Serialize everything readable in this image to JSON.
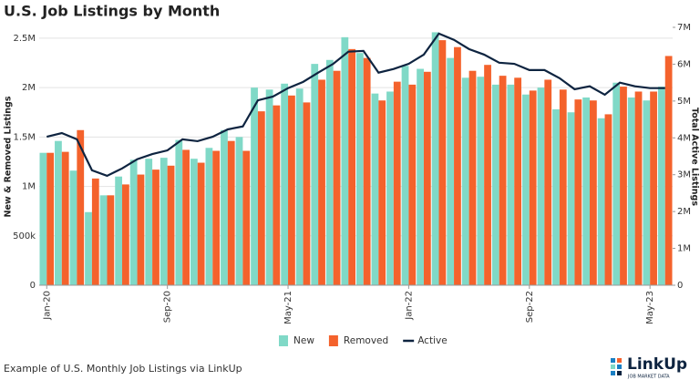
{
  "chart_data": {
    "type": "bar_line",
    "title": "U.S. Job Listings by Month",
    "y_label": "New & Removed Listings",
    "y2_label": "Total Active Listings",
    "categories": [
      "Jan-20",
      null,
      null,
      null,
      null,
      null,
      null,
      null,
      "Sep-20",
      null,
      null,
      null,
      null,
      null,
      null,
      null,
      "May-21",
      null,
      null,
      null,
      null,
      null,
      null,
      null,
      "Jan-22",
      null,
      null,
      null,
      null,
      null,
      null,
      null,
      "Sep-22",
      null,
      null,
      null,
      null,
      null,
      null,
      null,
      "May-23",
      null
    ],
    "series": [
      {
        "name": "New",
        "color": "#80d9c7",
        "values": [
          1340000,
          1460000,
          1160000,
          740000,
          910000,
          1100000,
          1270000,
          1280000,
          1290000,
          1470000,
          1280000,
          1390000,
          1570000,
          1500000,
          2000000,
          1980000,
          2040000,
          1990000,
          2240000,
          2280000,
          2510000,
          2350000,
          1940000,
          1960000,
          2220000,
          2190000,
          2560000,
          2300000,
          2100000,
          2110000,
          2030000,
          2030000,
          1930000,
          2000000,
          1780000,
          1750000,
          1900000,
          1690000,
          2050000,
          1900000,
          1870000,
          2010000
        ]
      },
      {
        "name": "Removed",
        "color": "#f4622c",
        "values": [
          1340000,
          1350000,
          1570000,
          1080000,
          910000,
          1020000,
          1120000,
          1170000,
          1210000,
          1370000,
          1240000,
          1360000,
          1460000,
          1360000,
          1760000,
          1820000,
          1920000,
          1850000,
          2080000,
          2170000,
          2390000,
          2300000,
          1870000,
          2060000,
          2030000,
          2160000,
          2480000,
          2410000,
          2170000,
          2230000,
          2120000,
          2100000,
          1970000,
          2080000,
          1980000,
          1880000,
          1870000,
          1730000,
          2010000,
          1960000,
          1960000,
          2320000
        ]
      },
      {
        "name": "Active",
        "color": "#0e2440",
        "axis": "y2",
        "values": [
          4030000,
          4130000,
          3960000,
          3120000,
          2970000,
          3170000,
          3420000,
          3560000,
          3660000,
          3960000,
          3910000,
          4030000,
          4230000,
          4310000,
          5020000,
          5120000,
          5350000,
          5520000,
          5770000,
          6010000,
          6340000,
          6360000,
          5770000,
          5870000,
          6010000,
          6260000,
          6830000,
          6660000,
          6410000,
          6260000,
          6040000,
          6010000,
          5840000,
          5840000,
          5620000,
          5320000,
          5400000,
          5170000,
          5500000,
          5400000,
          5350000,
          5350000
        ]
      }
    ],
    "ylim": [
      0,
      2610000
    ],
    "yticks": [
      0,
      {
        "value": 500000,
        "label": "500k"
      },
      {
        "value": 1000000,
        "label": "1M"
      },
      {
        "value": 1500000,
        "label": "1.5M"
      },
      {
        "value": 2000000,
        "label": "2M"
      },
      {
        "value": 2500000,
        "label": "2.5M"
      }
    ],
    "y2lim": [
      0,
      7000000
    ],
    "y2ticks": [
      0,
      {
        "value": 1000000,
        "label": "1M"
      },
      {
        "value": 2000000,
        "label": "2M"
      },
      {
        "value": 3000000,
        "label": "3M"
      },
      {
        "value": 4000000,
        "label": "4M"
      },
      {
        "value": 5000000,
        "label": "5M"
      },
      {
        "value": 6000000,
        "label": "6M"
      },
      {
        "value": 7000000,
        "label": "7M"
      }
    ],
    "grid": true,
    "legend": "bottom"
  },
  "footer": {
    "caption": "Example of U.S. Monthly Job Listings via LinkUp",
    "logo": "LinkUp",
    "logo_tagline": "JOB MARKET DATA"
  }
}
